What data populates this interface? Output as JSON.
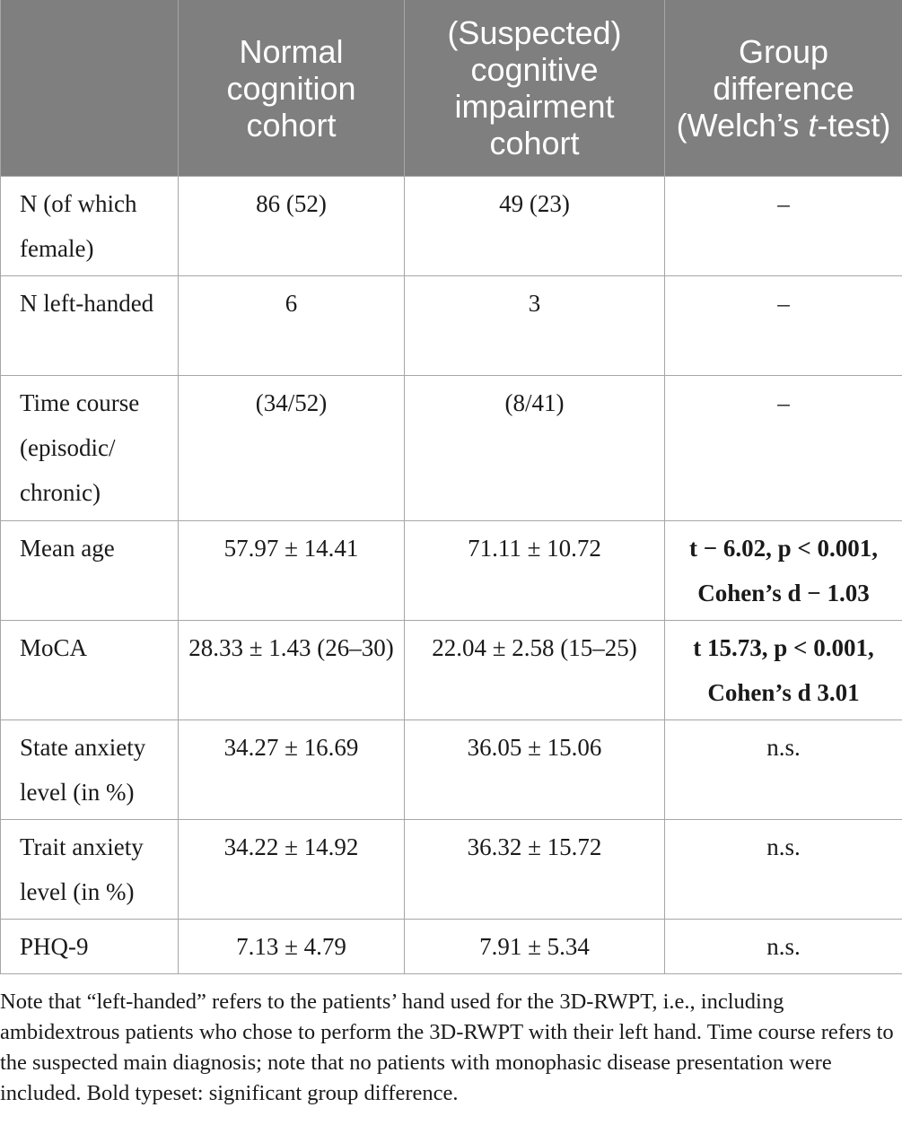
{
  "table": {
    "headers": [
      "",
      "Normal cognition cohort",
      "(Suspected) cognitive impairment cohort",
      "Group difference (Welch’s "
    ],
    "header_italic_t": "t",
    "header_tail": "-test)",
    "rows": [
      {
        "label": "N (of which female)",
        "normal": "86 (52)",
        "impaired": "49 (23)",
        "difference": "–",
        "significant": false
      },
      {
        "label": "N left-handed",
        "normal": "6",
        "impaired": "3",
        "difference": "–",
        "significant": false
      },
      {
        "label": "Time course (episodic/ chronic)",
        "normal": "(34/52)",
        "impaired": "(8/41)",
        "difference": "–",
        "significant": false
      },
      {
        "label": "Mean age",
        "normal": "57.97 ± 14.41",
        "impaired": "71.11 ± 10.72",
        "difference": "t − 6.02, p < 0.001, Cohen’s d − 1.03",
        "significant": true
      },
      {
        "label": "MoCA",
        "normal": "28.33 ± 1.43 (26–30)",
        "impaired": "22.04 ± 2.58 (15–25)",
        "difference": "t 15.73, p < 0.001, Cohen’s d 3.01",
        "significant": true
      },
      {
        "label": "State anxiety level (in %)",
        "normal": "34.27 ± 16.69",
        "impaired": "36.05 ± 15.06",
        "difference": "n.s.",
        "significant": false
      },
      {
        "label": "Trait anxiety level (in %)",
        "normal": "34.22 ± 14.92",
        "impaired": "36.32 ± 15.72",
        "difference": "n.s.",
        "significant": false
      },
      {
        "label": "PHQ-9",
        "normal": "7.13 ± 4.79",
        "impaired": "7.91 ± 5.34",
        "difference": "n.s.",
        "significant": false
      }
    ]
  },
  "note": "Note that “left-handed” refers to the patients’ hand used for the 3D-RWPT, i.e., including ambidextrous patients who chose to perform the 3D-RWPT with their left hand. Time course refers to the suspected main diagnosis; note that no patients with monophasic disease presentation were included. Bold typeset: significant group difference.",
  "colors": {
    "header_bg": "#7f7f7f",
    "header_text": "#ffffff",
    "border": "#a6a6a6",
    "body_text": "#1a1a1a"
  }
}
